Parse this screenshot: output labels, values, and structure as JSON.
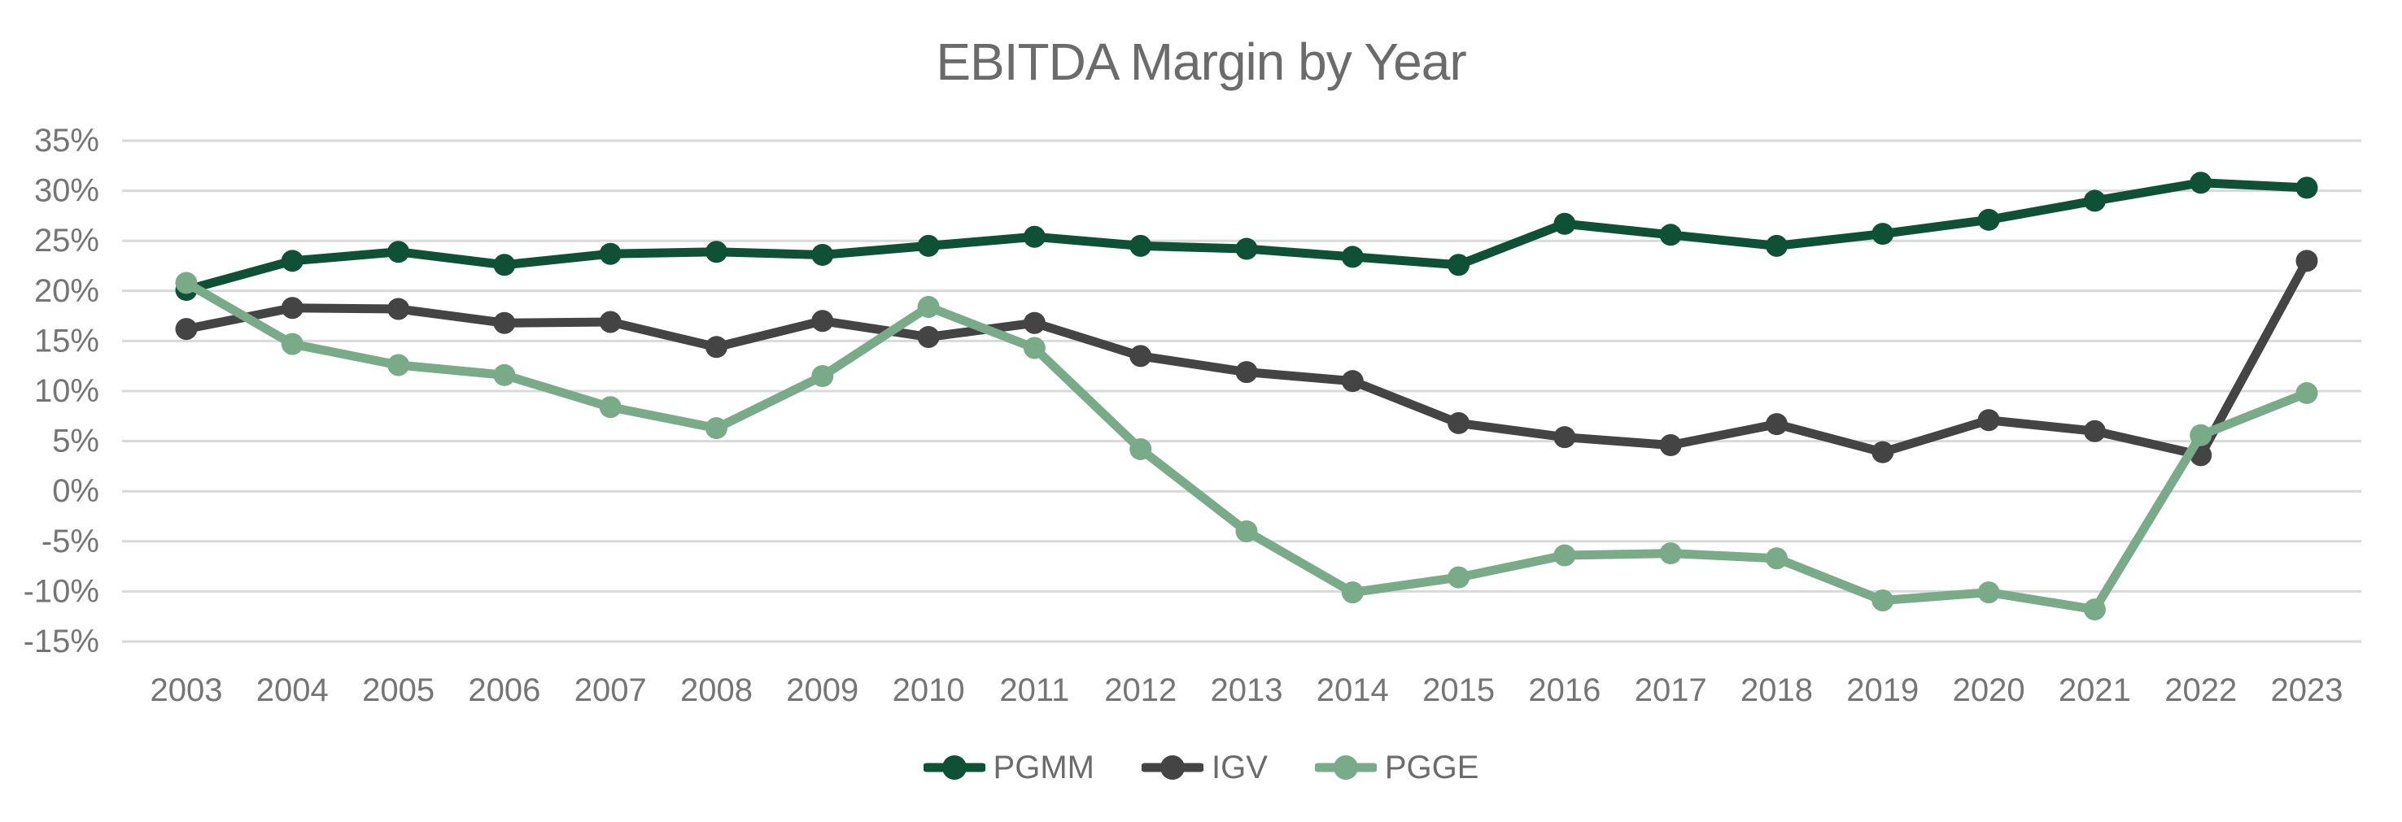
{
  "title": "EBITDA Margin by Year",
  "chart_data": {
    "type": "line",
    "title": "EBITDA Margin by Year",
    "x": [
      2003,
      2004,
      2005,
      2006,
      2007,
      2008,
      2009,
      2010,
      2011,
      2012,
      2013,
      2014,
      2015,
      2016,
      2017,
      2018,
      2019,
      2020,
      2021,
      2022,
      2023
    ],
    "series": [
      {
        "name": "PGMM",
        "color": "#0e5137",
        "values": [
          20.1,
          23.0,
          23.9,
          22.6,
          23.7,
          23.9,
          23.6,
          24.5,
          25.4,
          24.5,
          24.2,
          23.4,
          22.6,
          26.7,
          25.6,
          24.5,
          25.7,
          27.1,
          29.0,
          30.8,
          30.3
        ]
      },
      {
        "name": "IGV",
        "color": "#444444",
        "values": [
          16.2,
          18.3,
          18.2,
          16.8,
          16.9,
          14.4,
          17.0,
          15.4,
          16.8,
          13.5,
          11.9,
          11.0,
          6.8,
          5.4,
          4.6,
          6.7,
          3.9,
          7.1,
          6.0,
          3.6,
          23.0
        ]
      },
      {
        "name": "PGGE",
        "color": "#7aab89",
        "values": [
          20.8,
          14.7,
          12.6,
          11.6,
          8.4,
          6.3,
          11.5,
          18.4,
          14.3,
          4.2,
          -4.0,
          -10.1,
          -8.6,
          -6.4,
          -6.2,
          -6.7,
          -10.9,
          -10.1,
          -11.8,
          5.6,
          9.8
        ]
      }
    ],
    "xlabel": "",
    "ylabel": "",
    "y_ticks": [
      35,
      30,
      25,
      20,
      15,
      10,
      5,
      0,
      -5,
      -10,
      -15
    ],
    "y_tick_suffix": "%",
    "ylim": [
      -15,
      35
    ],
    "grid": "horizontal",
    "legend_position": "bottom"
  },
  "style_colors": {
    "background": "#ffffff",
    "gridline": "#d9d9d9",
    "axis_text": "#757575",
    "title_text": "#6b6b6b"
  }
}
